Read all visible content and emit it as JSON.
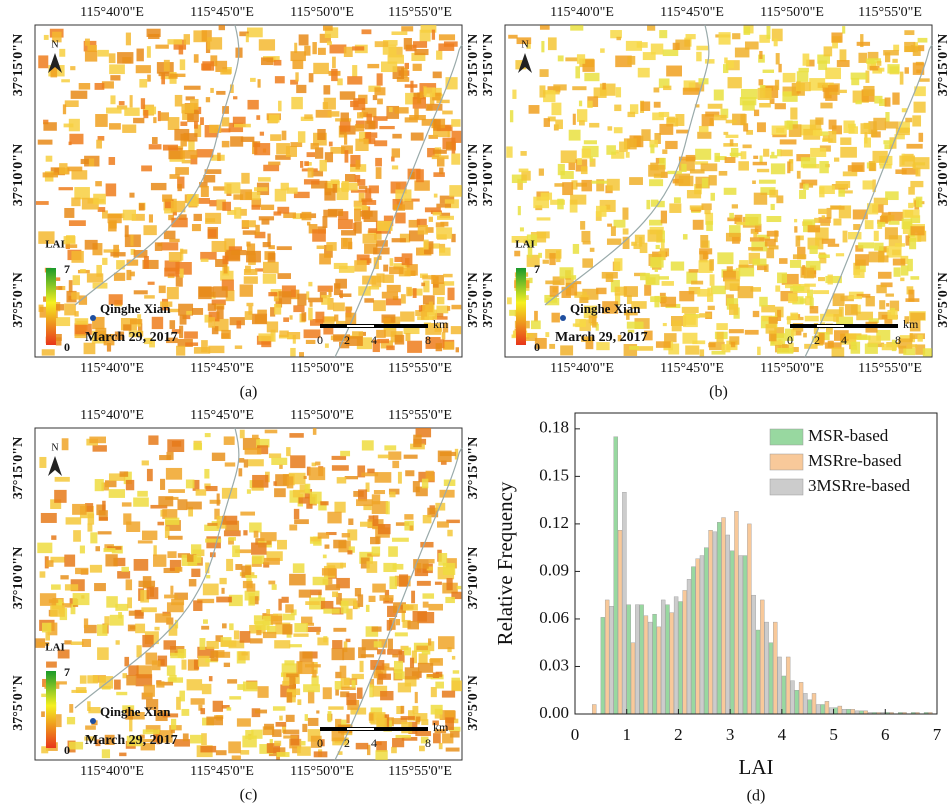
{
  "maps": [
    {
      "label": "(a)"
    },
    {
      "label": "(b)"
    },
    {
      "label": "(c)"
    }
  ],
  "map_text": {
    "lon_labels": [
      "115°40'0\"E",
      "115°45'0\"E",
      "115°50'0\"E",
      "115°55'0\"E"
    ],
    "lat_labels": [
      "37°15'0\"N",
      "37°10'0\"N",
      "37°5'0\"N"
    ],
    "north": "N",
    "legend_title": "LAI",
    "legend_max": "7",
    "legend_min": "0",
    "place": "Qinghe Xian",
    "date": "March 29, 2017",
    "scale_unit": "km",
    "scale_ticks": [
      "0",
      "2",
      "4",
      "8"
    ]
  },
  "chart_data": {
    "type": "bar",
    "label": "(d)",
    "x_label": "LAI",
    "y_label": "Relative Frequency",
    "bin_width": 0.25,
    "x": [
      0.25,
      0.5,
      0.75,
      1.0,
      1.25,
      1.5,
      1.75,
      2.0,
      2.25,
      2.5,
      2.75,
      3.0,
      3.25,
      3.5,
      3.75,
      4.0,
      4.25,
      4.5,
      4.75,
      5.0,
      5.25,
      5.5,
      5.75,
      6.0,
      6.25,
      6.5,
      6.75
    ],
    "series": [
      {
        "name": "MSR-based",
        "color": "#98d8a0",
        "values": [
          0,
          0.061,
          0.175,
          0.069,
          0.069,
          0.063,
          0.069,
          0.071,
          0.093,
          0.105,
          0.121,
          0.103,
          0.1,
          0.053,
          0.045,
          0.024,
          0.015,
          0.009,
          0.006,
          0.004,
          0.003,
          0.002,
          0.001,
          0.001,
          0.001,
          0.001,
          0.001
        ]
      },
      {
        "name": "MSRre-based",
        "color": "#f8c99a",
        "values": [
          0.006,
          0.072,
          0.116,
          0.045,
          0.062,
          0.055,
          0.064,
          0.078,
          0.098,
          0.116,
          0.124,
          0.128,
          0.12,
          0.072,
          0.058,
          0.036,
          0.02,
          0.013,
          0.008,
          0.005,
          0.003,
          0.002,
          0.001,
          0.001,
          0.001,
          0.001,
          0.001
        ]
      },
      {
        "name": "3MSRre-based",
        "color": "#cccccc",
        "values": [
          0,
          0.068,
          0.14,
          0.069,
          0.058,
          0.072,
          0.074,
          0.085,
          0.1,
          0.115,
          0.113,
          0.1,
          0.075,
          0.058,
          0.036,
          0.021,
          0.013,
          0.006,
          0.004,
          0.003,
          0.002,
          0.001,
          0.001,
          0,
          0,
          0,
          0
        ]
      }
    ],
    "xlim": [
      0,
      7
    ],
    "xticks": [
      0,
      1,
      2,
      3,
      4,
      5,
      6,
      7
    ],
    "ylim": [
      0,
      0.19
    ],
    "yticks": [
      {
        "value": 0,
        "label": "0.00"
      },
      0.03,
      0.06,
      0.09,
      0.12,
      0.15,
      0.18
    ],
    "legend": "upper right"
  }
}
